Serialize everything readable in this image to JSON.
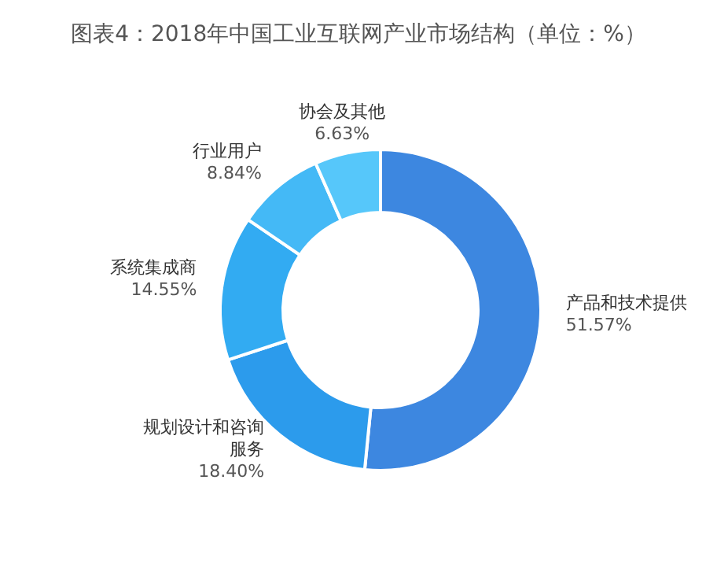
{
  "chart_data": {
    "type": "donut",
    "title": "图表4：2018年中国工业互联网产业市场结构（单位：%）",
    "categories": [
      "产品和技术提供",
      "规划设计和咨询服务",
      "系统集成商",
      "行业用户",
      "协会及其他"
    ],
    "values": [
      51.57,
      18.4,
      14.55,
      8.84,
      6.63
    ],
    "value_labels": [
      "51.57%",
      "18.40%",
      "14.55%",
      "8.84%",
      "6.63%"
    ],
    "colors": [
      "#3d87e0",
      "#2c9bec",
      "#32abf2",
      "#44b9f6",
      "#56c7fa"
    ],
    "legend": false
  }
}
